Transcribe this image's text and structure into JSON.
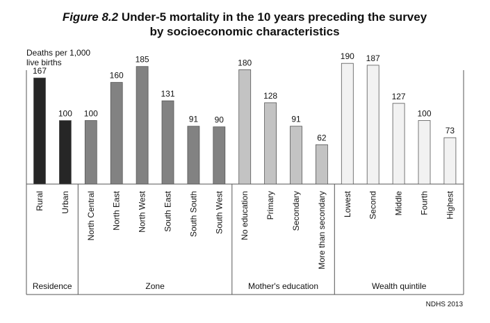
{
  "chart_data": {
    "type": "bar",
    "title_fig": "Figure 8.2",
    "title_rest": " Under-5 mortality in the 10 years preceding the survey",
    "title_line2": "by socioeconomic characteristics",
    "ylabel_line1": "Deaths per 1,000",
    "ylabel_line2": "live births",
    "source": "NDHS 2013",
    "ylim": [
      0,
      200
    ],
    "grid": false,
    "groups": [
      {
        "name": "Residence",
        "color": "#262626",
        "categories": [
          "Rural",
          "Urban"
        ],
        "values": [
          167,
          100
        ]
      },
      {
        "name": "Zone",
        "color": "#828282",
        "categories": [
          "North Central",
          "North East",
          "North West",
          "South East",
          "South South",
          "South West"
        ],
        "values": [
          100,
          160,
          185,
          131,
          91,
          90
        ]
      },
      {
        "name": "Mother's education",
        "color": "#c3c3c3",
        "categories": [
          "No education",
          "Primary",
          "Secondary",
          "More than secondary"
        ],
        "values": [
          180,
          128,
          91,
          62
        ]
      },
      {
        "name": "Wealth quintile",
        "color": "#f2f2f2",
        "categories": [
          "Lowest",
          "Second",
          "Middle",
          "Fourth",
          "Highest"
        ],
        "values": [
          190,
          187,
          127,
          100,
          73
        ]
      }
    ]
  }
}
